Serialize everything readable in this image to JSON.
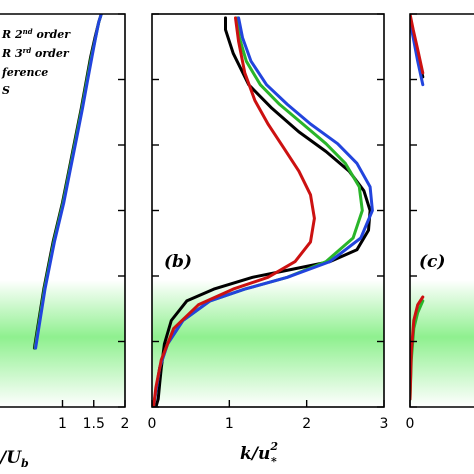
{
  "chart_data": [
    {
      "type": "line",
      "panel": "a",
      "xlabel": "U/U_b",
      "xlabel_visible_tail": "/U",
      "xlabel_sub": "b",
      "x_ticks": [
        "1",
        "1.5",
        "2"
      ],
      "xlim": [
        0,
        2
      ],
      "ylim": [
        0,
        1
      ],
      "grid": false,
      "legend_position": "top-left",
      "legend_entries": [
        "R 2nd order",
        "R 3rd order",
        "ference",
        "S"
      ],
      "series": [
        {
          "color": "#000000",
          "x": [
            0.55,
            0.7,
            0.85,
            1.0,
            1.1,
            1.2,
            1.3,
            1.38,
            1.45,
            1.52,
            1.58,
            1.62
          ],
          "y": [
            0.15,
            0.3,
            0.42,
            0.52,
            0.6,
            0.68,
            0.76,
            0.83,
            0.89,
            0.94,
            0.98,
            1.0
          ]
        },
        {
          "color": "#2ab52a",
          "x": [
            0.56,
            0.71,
            0.86,
            1.01,
            1.11,
            1.21,
            1.31,
            1.39,
            1.46,
            1.53,
            1.58,
            1.62
          ],
          "y": [
            0.15,
            0.3,
            0.42,
            0.52,
            0.6,
            0.68,
            0.76,
            0.83,
            0.89,
            0.94,
            0.98,
            1.0
          ]
        },
        {
          "color": "#2244dd",
          "x": [
            0.57,
            0.72,
            0.87,
            1.02,
            1.12,
            1.22,
            1.32,
            1.4,
            1.47,
            1.53,
            1.58,
            1.62
          ],
          "y": [
            0.15,
            0.3,
            0.42,
            0.52,
            0.6,
            0.68,
            0.76,
            0.83,
            0.89,
            0.94,
            0.98,
            1.0
          ]
        }
      ]
    },
    {
      "type": "line",
      "panel": "b",
      "label": "(b)",
      "xlabel": "k/u",
      "xlabel_sup": "2",
      "xlabel_sub": "*",
      "x_ticks": [
        "0",
        "1",
        "2",
        "3"
      ],
      "xlim": [
        0,
        3
      ],
      "ylim": [
        0,
        1
      ],
      "grid": false,
      "series": [
        {
          "color": "#000000",
          "x": [
            0.05,
            0.08,
            0.1,
            0.12,
            0.16,
            0.25,
            0.45,
            0.8,
            1.3,
            1.8,
            2.3,
            2.65,
            2.8,
            2.82,
            2.74,
            2.55,
            2.25,
            1.9,
            1.55,
            1.25,
            1.05,
            0.95,
            0.95
          ],
          "y": [
            0.0,
            0.02,
            0.06,
            0.1,
            0.16,
            0.22,
            0.27,
            0.3,
            0.33,
            0.35,
            0.37,
            0.4,
            0.45,
            0.5,
            0.55,
            0.6,
            0.65,
            0.7,
            0.76,
            0.82,
            0.9,
            0.96,
            0.99
          ]
        },
        {
          "color": "#2ab52a",
          "x": [
            0.02,
            0.05,
            0.1,
            0.2,
            0.4,
            0.75,
            1.2,
            1.75,
            2.25,
            2.6,
            2.72,
            2.68,
            2.5,
            2.25,
            1.95,
            1.65,
            1.4,
            1.22,
            1.13,
            1.1
          ],
          "y": [
            0.0,
            0.04,
            0.1,
            0.16,
            0.22,
            0.27,
            0.3,
            0.33,
            0.37,
            0.43,
            0.5,
            0.56,
            0.62,
            0.67,
            0.72,
            0.77,
            0.82,
            0.88,
            0.94,
            0.99
          ]
        },
        {
          "color": "#2244dd",
          "x": [
            0.02,
            0.05,
            0.1,
            0.2,
            0.4,
            0.75,
            1.2,
            1.75,
            2.3,
            2.7,
            2.85,
            2.82,
            2.65,
            2.4,
            2.05,
            1.75,
            1.48,
            1.28,
            1.17,
            1.12
          ],
          "y": [
            0.0,
            0.04,
            0.1,
            0.16,
            0.22,
            0.27,
            0.3,
            0.33,
            0.37,
            0.43,
            0.5,
            0.56,
            0.62,
            0.67,
            0.72,
            0.77,
            0.82,
            0.88,
            0.94,
            0.99
          ]
        },
        {
          "color": "#cc1111",
          "x": [
            0.02,
            0.05,
            0.12,
            0.28,
            0.6,
            1.05,
            1.5,
            1.85,
            2.05,
            2.1,
            2.05,
            1.9,
            1.7,
            1.5,
            1.33,
            1.2,
            1.12,
            1.08
          ],
          "y": [
            0.0,
            0.05,
            0.12,
            0.2,
            0.26,
            0.3,
            0.33,
            0.37,
            0.42,
            0.48,
            0.54,
            0.6,
            0.66,
            0.72,
            0.78,
            0.85,
            0.93,
            0.99
          ]
        }
      ]
    },
    {
      "type": "line",
      "panel": "c",
      "label": "(c)",
      "x_ticks": [
        "0"
      ],
      "xlim": [
        0,
        1
      ],
      "ylim": [
        0,
        1
      ],
      "grid": false,
      "series": [
        {
          "color": "#000000",
          "x": [
            0.0,
            0.05,
            0.12,
            0.2
          ],
          "y": [
            0.99,
            0.95,
            0.9,
            0.84
          ]
        },
        {
          "color": "#2244dd",
          "x": [
            0.0,
            0.05,
            0.12,
            0.2
          ],
          "y": [
            0.98,
            0.94,
            0.88,
            0.82
          ]
        },
        {
          "color": "#cc1111",
          "x": [
            0.0,
            0.05,
            0.12,
            0.2
          ],
          "y": [
            1.0,
            0.96,
            0.91,
            0.85
          ]
        },
        {
          "color": "#2ab52a",
          "x": [
            0.0,
            0.02,
            0.06,
            0.12,
            0.2
          ],
          "y": [
            0.02,
            0.12,
            0.2,
            0.24,
            0.27
          ]
        },
        {
          "color": "#cc1111",
          "x": [
            0.0,
            0.02,
            0.06,
            0.12,
            0.2
          ],
          "y": [
            0.02,
            0.14,
            0.22,
            0.26,
            0.28
          ]
        }
      ]
    }
  ]
}
